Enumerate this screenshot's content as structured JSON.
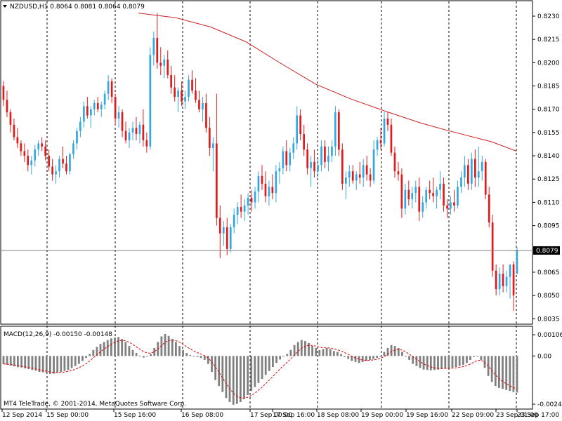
{
  "header": {
    "menu_arrow_icon": "triangle-down",
    "title": "NZDUSD,H1  0.8064 0.8081 0.8064 0.8079"
  },
  "macd_header": "MACD(12,26,9) -0.00150 -0.00148",
  "copyright": "MT4 TeleTrade, © 2001-2014, MetaQuotes Software Corp.",
  "colors": {
    "bull": "#35a7e0",
    "bear": "#e01b1b",
    "ma": "#cc2222",
    "histogram": "#808080",
    "signal": "#dd0000",
    "grid": "#000000",
    "price_line": "#808080",
    "price_tag_bg": "#000000",
    "price_tag_fg": "#ffffff"
  },
  "chart_data": {
    "type": "candlestick",
    "symbol": "NZDUSD",
    "timeframe": "H1",
    "current_price": "0.8079",
    "y_ticks": [
      "0.8230",
      "0.8215",
      "0.8200",
      "0.8185",
      "0.8170",
      "0.8155",
      "0.8140",
      "0.8125",
      "0.8110",
      "0.8095",
      "0.8065",
      "0.8050",
      "0.8035"
    ],
    "ylim": [
      0.80315,
      0.82395
    ],
    "x_labels": [
      "12 Sep 2014",
      "15 Sep 00:00",
      "15 Sep 16:00",
      "16 Sep 08:00",
      "17 Sep 00:00",
      "17 Sep 16:00",
      "18 Sep 08:00",
      "19 Sep 00:00",
      "19 Sep 16:00",
      "22 Sep 09:00",
      "23 Sep 01:00",
      "23 Sep 17:00"
    ],
    "candles": [
      [
        0.8185,
        0.8188,
        0.8172,
        0.8176
      ],
      [
        0.8176,
        0.8182,
        0.8165,
        0.8168
      ],
      [
        0.8168,
        0.817,
        0.8155,
        0.816
      ],
      [
        0.816,
        0.8164,
        0.815,
        0.8152
      ],
      [
        0.8152,
        0.8158,
        0.8145,
        0.8148
      ],
      [
        0.8148,
        0.815,
        0.814,
        0.8143
      ],
      [
        0.8143,
        0.8148,
        0.8136,
        0.814
      ],
      [
        0.814,
        0.8144,
        0.813,
        0.8134
      ],
      [
        0.8134,
        0.814,
        0.8128,
        0.8137
      ],
      [
        0.8137,
        0.8147,
        0.8133,
        0.8144
      ],
      [
        0.8144,
        0.815,
        0.814,
        0.8148
      ],
      [
        0.8148,
        0.8152,
        0.8143,
        0.8146
      ],
      [
        0.8146,
        0.815,
        0.8137,
        0.814
      ],
      [
        0.814,
        0.8144,
        0.813,
        0.8133
      ],
      [
        0.8133,
        0.8138,
        0.8124,
        0.8128
      ],
      [
        0.8128,
        0.8134,
        0.8122,
        0.813
      ],
      [
        0.813,
        0.814,
        0.8126,
        0.8138
      ],
      [
        0.8138,
        0.8146,
        0.8132,
        0.8135
      ],
      [
        0.8135,
        0.814,
        0.8128,
        0.813
      ],
      [
        0.813,
        0.8142,
        0.8128,
        0.8141
      ],
      [
        0.8141,
        0.815,
        0.8138,
        0.8148
      ],
      [
        0.8148,
        0.8158,
        0.8144,
        0.8156
      ],
      [
        0.8156,
        0.8165,
        0.8152,
        0.8162
      ],
      [
        0.8162,
        0.8175,
        0.8158,
        0.8172
      ],
      [
        0.8172,
        0.8178,
        0.8164,
        0.8166
      ],
      [
        0.8166,
        0.8172,
        0.8158,
        0.817
      ],
      [
        0.817,
        0.8176,
        0.8166,
        0.8174
      ],
      [
        0.8174,
        0.8178,
        0.8168,
        0.817
      ],
      [
        0.817,
        0.8175,
        0.8165,
        0.8173
      ],
      [
        0.8173,
        0.8182,
        0.817,
        0.818
      ],
      [
        0.818,
        0.8192,
        0.8176,
        0.8188
      ],
      [
        0.8188,
        0.819,
        0.8174,
        0.8178
      ],
      [
        0.8178,
        0.818,
        0.816,
        0.8164
      ],
      [
        0.8164,
        0.8172,
        0.8158,
        0.8168
      ],
      [
        0.8168,
        0.817,
        0.8152,
        0.8156
      ],
      [
        0.8156,
        0.8162,
        0.8148,
        0.815
      ],
      [
        0.815,
        0.8158,
        0.8145,
        0.8155
      ],
      [
        0.8155,
        0.8162,
        0.815,
        0.8158
      ],
      [
        0.8158,
        0.8165,
        0.815,
        0.8154
      ],
      [
        0.8154,
        0.8162,
        0.8148,
        0.816
      ],
      [
        0.816,
        0.817,
        0.8146,
        0.815
      ],
      [
        0.815,
        0.8155,
        0.8142,
        0.8146
      ],
      [
        0.8146,
        0.821,
        0.8144,
        0.8205
      ],
      [
        0.8205,
        0.822,
        0.8198,
        0.8216
      ],
      [
        0.8216,
        0.8232,
        0.8196,
        0.82
      ],
      [
        0.82,
        0.821,
        0.8192,
        0.8198
      ],
      [
        0.8198,
        0.8205,
        0.819,
        0.8202
      ],
      [
        0.8202,
        0.8208,
        0.819,
        0.8192
      ],
      [
        0.8192,
        0.8198,
        0.818,
        0.8184
      ],
      [
        0.8184,
        0.8192,
        0.8175,
        0.8178
      ],
      [
        0.8178,
        0.8184,
        0.8168,
        0.8182
      ],
      [
        0.8182,
        0.8188,
        0.8172,
        0.8175
      ],
      [
        0.8175,
        0.8182,
        0.817,
        0.8178
      ],
      [
        0.8178,
        0.8192,
        0.8175,
        0.8189
      ],
      [
        0.8189,
        0.8195,
        0.818,
        0.8182
      ],
      [
        0.8182,
        0.819,
        0.8174,
        0.8176
      ],
      [
        0.8176,
        0.8182,
        0.8168,
        0.817
      ],
      [
        0.817,
        0.8178,
        0.8162,
        0.8174
      ],
      [
        0.8174,
        0.818,
        0.8155,
        0.8158
      ],
      [
        0.8158,
        0.8165,
        0.814,
        0.8145
      ],
      [
        0.8145,
        0.8152,
        0.813,
        0.8148
      ],
      [
        0.8148,
        0.818,
        0.8095,
        0.81
      ],
      [
        0.81,
        0.8108,
        0.8074,
        0.809
      ],
      [
        0.809,
        0.8098,
        0.8082,
        0.8094
      ],
      [
        0.8094,
        0.81,
        0.8076,
        0.808
      ],
      [
        0.808,
        0.8096,
        0.8078,
        0.8094
      ],
      [
        0.8094,
        0.8106,
        0.809,
        0.8102
      ],
      [
        0.8102,
        0.811,
        0.8096,
        0.8107
      ],
      [
        0.8107,
        0.8115,
        0.81,
        0.8104
      ],
      [
        0.8104,
        0.8112,
        0.8098,
        0.8108
      ],
      [
        0.8108,
        0.8116,
        0.8102,
        0.8113
      ],
      [
        0.8113,
        0.8118,
        0.8104,
        0.811
      ],
      [
        0.811,
        0.812,
        0.8106,
        0.8117
      ],
      [
        0.8117,
        0.813,
        0.811,
        0.8127
      ],
      [
        0.8127,
        0.8134,
        0.8118,
        0.8122
      ],
      [
        0.8122,
        0.813,
        0.811,
        0.8114
      ],
      [
        0.8114,
        0.8124,
        0.8108,
        0.812
      ],
      [
        0.812,
        0.8128,
        0.8112,
        0.8116
      ],
      [
        0.8116,
        0.8134,
        0.811,
        0.813
      ],
      [
        0.813,
        0.8136,
        0.8122,
        0.8132
      ],
      [
        0.8132,
        0.8146,
        0.8128,
        0.8143
      ],
      [
        0.8143,
        0.815,
        0.813,
        0.8134
      ],
      [
        0.8134,
        0.8145,
        0.813,
        0.8142
      ],
      [
        0.8142,
        0.8152,
        0.8138,
        0.8148
      ],
      [
        0.8148,
        0.8172,
        0.8144,
        0.8166
      ],
      [
        0.8166,
        0.817,
        0.815,
        0.8154
      ],
      [
        0.8154,
        0.816,
        0.814,
        0.8144
      ],
      [
        0.8144,
        0.8148,
        0.8128,
        0.8132
      ],
      [
        0.8132,
        0.814,
        0.812,
        0.8136
      ],
      [
        0.8136,
        0.8144,
        0.8126,
        0.813
      ],
      [
        0.813,
        0.8138,
        0.8126,
        0.8134
      ],
      [
        0.8134,
        0.815,
        0.813,
        0.8146
      ],
      [
        0.8146,
        0.815,
        0.8132,
        0.8136
      ],
      [
        0.8136,
        0.8146,
        0.813,
        0.814
      ],
      [
        0.814,
        0.815,
        0.8136,
        0.8146
      ],
      [
        0.8146,
        0.8172,
        0.814,
        0.8168
      ],
      [
        0.8168,
        0.817,
        0.814,
        0.8144
      ],
      [
        0.8144,
        0.8148,
        0.8118,
        0.8122
      ],
      [
        0.8122,
        0.813,
        0.8112,
        0.8126
      ],
      [
        0.8126,
        0.8134,
        0.812,
        0.813
      ],
      [
        0.813,
        0.8134,
        0.8122,
        0.8124
      ],
      [
        0.8124,
        0.813,
        0.8118,
        0.8128
      ],
      [
        0.8128,
        0.8136,
        0.8122,
        0.8126
      ],
      [
        0.8126,
        0.8138,
        0.812,
        0.8134
      ],
      [
        0.8134,
        0.814,
        0.8124,
        0.8128
      ],
      [
        0.8128,
        0.8132,
        0.812,
        0.8124
      ],
      [
        0.8124,
        0.815,
        0.8122,
        0.8144
      ],
      [
        0.8144,
        0.8152,
        0.814,
        0.815
      ],
      [
        0.815,
        0.8158,
        0.8144,
        0.8148
      ],
      [
        0.8148,
        0.8168,
        0.8146,
        0.8164
      ],
      [
        0.8164,
        0.8168,
        0.8156,
        0.816
      ],
      [
        0.816,
        0.8164,
        0.814,
        0.8142
      ],
      [
        0.8142,
        0.8146,
        0.8126,
        0.813
      ],
      [
        0.813,
        0.8136,
        0.8124,
        0.8128
      ],
      [
        0.8128,
        0.8132,
        0.81,
        0.8106
      ],
      [
        0.8106,
        0.8122,
        0.8102,
        0.8118
      ],
      [
        0.8118,
        0.8124,
        0.8108,
        0.8112
      ],
      [
        0.8112,
        0.812,
        0.8106,
        0.8116
      ],
      [
        0.8116,
        0.8124,
        0.811,
        0.812
      ],
      [
        0.812,
        0.8126,
        0.8098,
        0.8104
      ],
      [
        0.8104,
        0.8114,
        0.81,
        0.811
      ],
      [
        0.811,
        0.812,
        0.8106,
        0.8118
      ],
      [
        0.8118,
        0.8124,
        0.8112,
        0.8116
      ],
      [
        0.8116,
        0.8126,
        0.811,
        0.8114
      ],
      [
        0.8114,
        0.812,
        0.8106,
        0.8118
      ],
      [
        0.8118,
        0.813,
        0.8112,
        0.8122
      ],
      [
        0.8122,
        0.8126,
        0.8104,
        0.8108
      ],
      [
        0.8108,
        0.8112,
        0.81,
        0.8106
      ],
      [
        0.8106,
        0.8114,
        0.8102,
        0.811
      ],
      [
        0.811,
        0.8118,
        0.8104,
        0.8108
      ],
      [
        0.8108,
        0.8124,
        0.8106,
        0.812
      ],
      [
        0.812,
        0.813,
        0.8116,
        0.8126
      ],
      [
        0.8126,
        0.814,
        0.812,
        0.8134
      ],
      [
        0.8134,
        0.8138,
        0.8118,
        0.8122
      ],
      [
        0.8122,
        0.8142,
        0.8118,
        0.8138
      ],
      [
        0.8138,
        0.8144,
        0.812,
        0.8126
      ],
      [
        0.8126,
        0.8146,
        0.812,
        0.813
      ],
      [
        0.813,
        0.814,
        0.8124,
        0.8136
      ],
      [
        0.8136,
        0.8138,
        0.8112,
        0.8115
      ],
      [
        0.8115,
        0.812,
        0.8094,
        0.8097
      ],
      [
        0.8097,
        0.8102,
        0.8062,
        0.8066
      ],
      [
        0.8066,
        0.807,
        0.805,
        0.8054
      ],
      [
        0.8054,
        0.8068,
        0.805,
        0.8064
      ],
      [
        0.8064,
        0.807,
        0.8052,
        0.8056
      ],
      [
        0.8056,
        0.8066,
        0.8052,
        0.8062
      ],
      [
        0.8062,
        0.8068,
        0.8048,
        0.807
      ],
      [
        0.807,
        0.8072,
        0.804,
        0.805
      ],
      [
        0.8064,
        0.8081,
        0.8064,
        0.8079
      ]
    ],
    "moving_average": [
      {
        "x": 197,
        "y": 0.8232
      },
      {
        "x": 250,
        "y": 0.8229
      },
      {
        "x": 300,
        "y": 0.8223
      },
      {
        "x": 350,
        "y": 0.82135
      },
      {
        "x": 400,
        "y": 0.81995
      },
      {
        "x": 450,
        "y": 0.8186
      },
      {
        "x": 500,
        "y": 0.81765
      },
      {
        "x": 550,
        "y": 0.81685
      },
      {
        "x": 600,
        "y": 0.8161
      },
      {
        "x": 640,
        "y": 0.8156
      },
      {
        "x": 700,
        "y": 0.8149
      },
      {
        "x": 735,
        "y": 0.8143
      }
    ],
    "macd": {
      "name": "MACD(12,26,9)",
      "main": -0.0015,
      "signal": -0.00148,
      "y_ticks": [
        "0.00106",
        "0.00",
        "-0.00241"
      ],
      "ylim": [
        -0.00262,
        0.00145
      ],
      "histogram": [
        -0.0004,
        -0.00044,
        -0.00048,
        -0.00052,
        -0.00056,
        -0.00058,
        -0.00062,
        -0.00066,
        -0.0007,
        -0.00074,
        -0.0008,
        -0.00082,
        -0.00086,
        -0.0009,
        -0.00088,
        -0.00084,
        -0.0008,
        -0.00075,
        -0.0007,
        -0.0006,
        -0.0005,
        -0.0004,
        -0.00025,
        -0.0001,
        0.0001,
        0.0003,
        0.00045,
        0.0006,
        0.0007,
        0.0008,
        0.00088,
        0.00092,
        0.00095,
        0.00085,
        0.0007,
        0.0005,
        0.0003,
        0.00015,
        2e-05,
        -8e-05,
        -2e-05,
        0.0001,
        0.0004,
        0.0007,
        0.00098,
        0.0011,
        0.001,
        0.00085,
        0.0007,
        0.0005,
        0.0003,
        0.00015,
        5e-05,
        0.0,
        -5e-05,
        -0.0001,
        -0.0002,
        -0.0004,
        -0.0008,
        -0.0012,
        -0.0015,
        -0.0018,
        -0.0021,
        -0.0023,
        -0.00244,
        -0.0024,
        -0.0023,
        -0.00215,
        -0.00195,
        -0.00175,
        -0.00155,
        -0.00135,
        -0.00115,
        -0.00095,
        -0.00075,
        -0.00055,
        -0.00035,
        -0.00018,
        -2e-05,
        0.0001,
        0.0003,
        0.00055,
        0.0007,
        0.0008,
        0.00075,
        0.00065,
        0.0005,
        0.0004,
        0.0003,
        0.00035,
        0.0004,
        0.00035,
        0.00025,
        0.0002,
        0.0001,
        -5e-05,
        -0.00015,
        -0.00025,
        -0.0003,
        -0.00035,
        -0.0003,
        -0.00025,
        -0.0002,
        -0.00015,
        -0.0001,
        0.0,
        0.0002,
        0.0004,
        0.00055,
        0.0005,
        0.0004,
        0.0002,
        0.0,
        -0.0002,
        -0.0004,
        -0.0005,
        -0.0006,
        -0.00068,
        -0.0007,
        -0.00072,
        -0.0007,
        -0.00068,
        -0.00065,
        -0.00062,
        -0.0006,
        -0.00058,
        -0.00055,
        -0.0005,
        -0.00045,
        -0.00035,
        -0.0002,
        -5e-05,
        0.0,
        -0.0002,
        -0.0006,
        -0.001,
        -0.0013,
        -0.0015,
        -0.0016,
        -0.00165,
        -0.0017,
        -0.00175,
        -0.0018,
        -0.00183
      ]
    }
  }
}
